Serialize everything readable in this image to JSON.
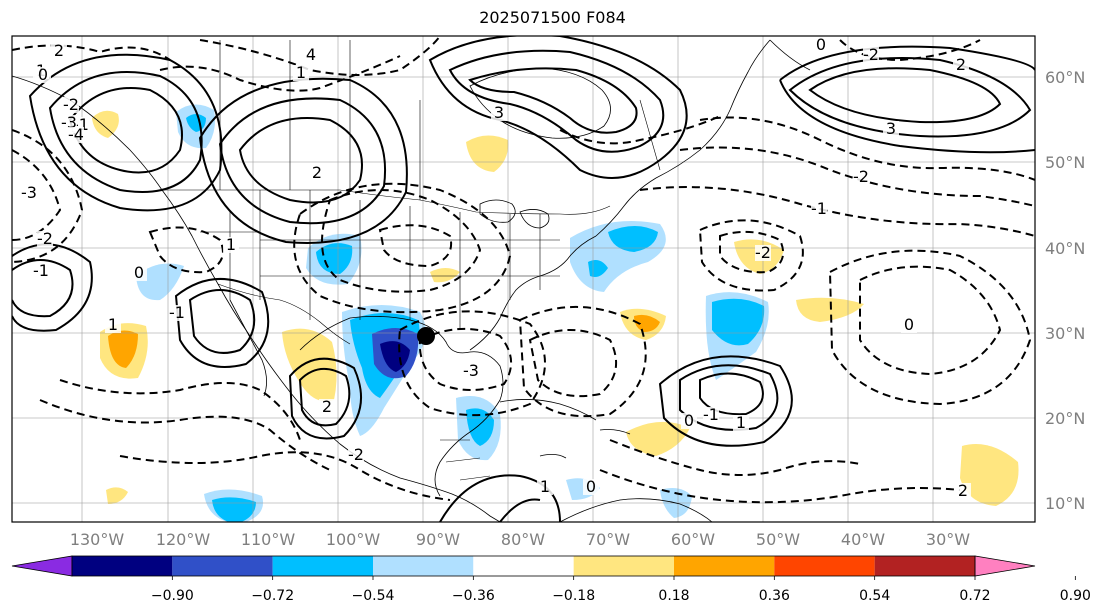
{
  "title": "2025071500 F084",
  "map": {
    "lon_labels": [
      "130°W",
      "120°W",
      "110°W",
      "100°W",
      "90°W",
      "80°W",
      "70°W",
      "60°W",
      "50°W",
      "40°W",
      "30°W"
    ],
    "lat_labels": [
      "60°N",
      "50°N",
      "40°N",
      "30°N",
      "20°N",
      "10°N"
    ],
    "contour_labels": [
      "2",
      "1",
      "0",
      "-1",
      "-2",
      "-3",
      "-4",
      "1",
      "2",
      "3",
      "4",
      "3",
      "2",
      "0",
      "-2",
      "-1",
      "-2",
      "-3",
      "1",
      "-1",
      "-3",
      "2",
      "1",
      "0",
      "0",
      "-2",
      "-2",
      "-1",
      "1",
      "0",
      "-1",
      "-2",
      "1",
      "0",
      "2"
    ]
  },
  "colorbar": {
    "levels": [
      "−0.90",
      "−0.72",
      "−0.54",
      "−0.36",
      "−0.18",
      "0.18",
      "0.36",
      "0.54",
      "0.72",
      "0.90"
    ],
    "colors": [
      "#8a2be2",
      "#000080",
      "#3050c8",
      "#00bfff",
      "#b0e0ff",
      "#ffffff",
      "#ffe680",
      "#ffa500",
      "#ff4500",
      "#b22222",
      "#ff80c0"
    ]
  }
}
